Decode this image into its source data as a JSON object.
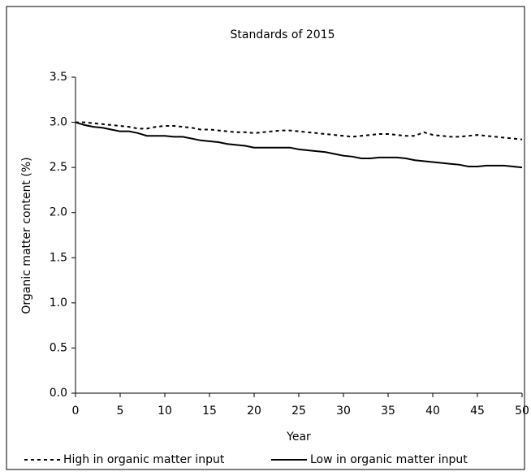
{
  "chart_data": {
    "type": "line",
    "title": "Standards of 2015",
    "x_label": "Year",
    "y_label": "Organic matter content (%)",
    "x": [
      0,
      1,
      2,
      3,
      4,
      5,
      6,
      7,
      8,
      9,
      10,
      11,
      12,
      13,
      14,
      15,
      16,
      17,
      18,
      19,
      20,
      21,
      22,
      23,
      24,
      25,
      26,
      27,
      28,
      29,
      30,
      31,
      32,
      33,
      34,
      35,
      36,
      37,
      38,
      39,
      40,
      41,
      42,
      43,
      44,
      45,
      46,
      47,
      48,
      49,
      50
    ],
    "series": [
      {
        "name": "High in organic matter input",
        "color": "#000000",
        "style": "dotted",
        "values": [
          3.0,
          3.0,
          2.99,
          2.98,
          2.97,
          2.96,
          2.95,
          2.93,
          2.93,
          2.95,
          2.96,
          2.96,
          2.95,
          2.94,
          2.92,
          2.92,
          2.91,
          2.9,
          2.89,
          2.89,
          2.88,
          2.89,
          2.9,
          2.91,
          2.91,
          2.9,
          2.89,
          2.88,
          2.87,
          2.86,
          2.85,
          2.84,
          2.85,
          2.86,
          2.87,
          2.87,
          2.86,
          2.85,
          2.85,
          2.89,
          2.86,
          2.85,
          2.84,
          2.84,
          2.85,
          2.86,
          2.85,
          2.84,
          2.83,
          2.82,
          2.81
        ]
      },
      {
        "name": "Low in organic matter input",
        "color": "#000000",
        "style": "solid",
        "values": [
          3.0,
          2.97,
          2.95,
          2.94,
          2.92,
          2.9,
          2.9,
          2.88,
          2.85,
          2.85,
          2.85,
          2.84,
          2.84,
          2.82,
          2.8,
          2.79,
          2.78,
          2.76,
          2.75,
          2.74,
          2.72,
          2.72,
          2.72,
          2.72,
          2.72,
          2.7,
          2.69,
          2.68,
          2.67,
          2.65,
          2.63,
          2.62,
          2.6,
          2.6,
          2.61,
          2.61,
          2.61,
          2.6,
          2.58,
          2.57,
          2.56,
          2.55,
          2.54,
          2.53,
          2.51,
          2.51,
          2.52,
          2.52,
          2.52,
          2.51,
          2.5
        ]
      }
    ],
    "xlim": [
      0,
      50
    ],
    "xticks": [
      0,
      5,
      10,
      15,
      20,
      25,
      30,
      35,
      40,
      45,
      50
    ],
    "ylim": [
      0,
      3.5
    ],
    "yticks": [
      {
        "value": 0,
        "label": "0.0"
      },
      {
        "value": 0.5,
        "label": "0.5"
      },
      {
        "value": 1,
        "label": "1.0"
      },
      {
        "value": 1.5,
        "label": "1.5"
      },
      {
        "value": 2,
        "label": "2.0"
      },
      {
        "value": 2.5,
        "label": "2.5"
      },
      {
        "value": 3,
        "label": "3.0"
      },
      {
        "value": 3.5,
        "label": "3.5"
      }
    ],
    "grid": false,
    "legend": "bottom"
  }
}
